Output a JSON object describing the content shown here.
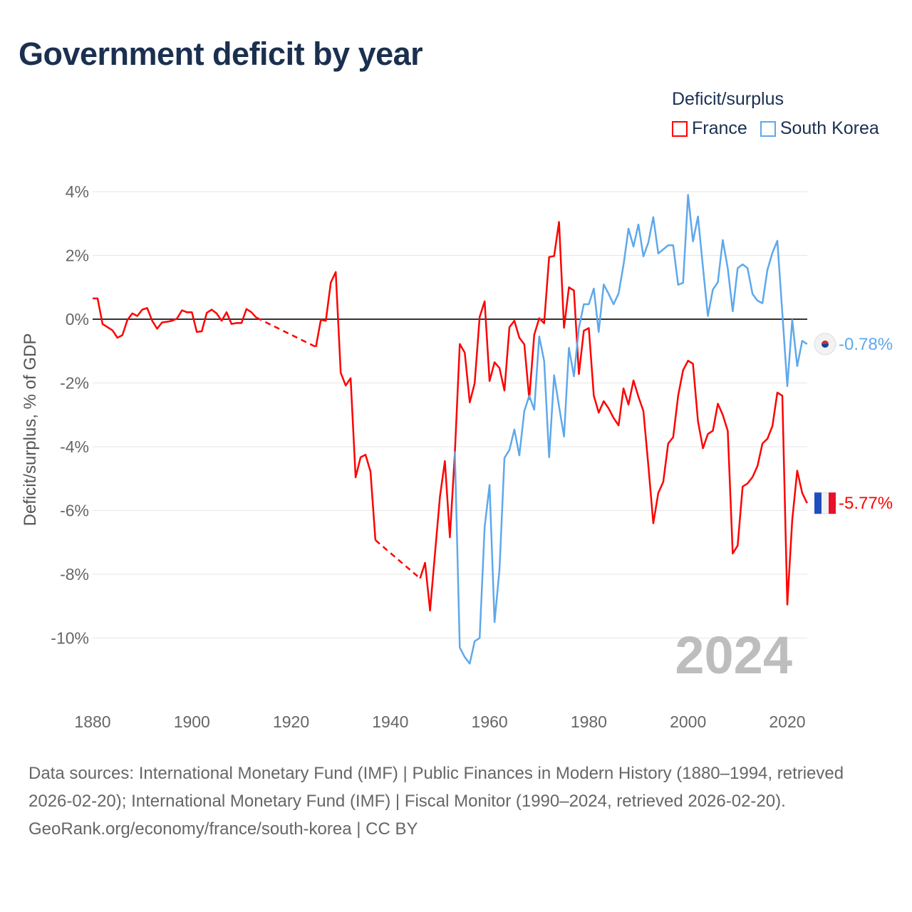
{
  "title": "Government deficit by year",
  "legend": {
    "title": "Deficit/surplus",
    "items": [
      {
        "label": "France",
        "color": "#ff0000"
      },
      {
        "label": "South Korea",
        "color": "#5ea8ec"
      }
    ]
  },
  "chart_data": {
    "type": "line",
    "title": "Government deficit by year",
    "ylabel": "Deficit/surplus, % of GDP",
    "xlabel": "",
    "xlim": [
      1880,
      2024
    ],
    "ylim": [
      -11,
      4
    ],
    "x_ticks": [
      "1880",
      "1900",
      "1920",
      "1940",
      "1960",
      "1980",
      "2000",
      "2020"
    ],
    "y_ticks": [
      {
        "value": 4,
        "label": "4%"
      },
      {
        "value": 2,
        "label": "2%"
      },
      {
        "value": 0,
        "label": "0%"
      },
      {
        "value": -2,
        "label": "-2%"
      },
      {
        "value": -4,
        "label": "-4%"
      },
      {
        "value": -6,
        "label": "-6%"
      },
      {
        "value": -8,
        "label": "-8%"
      },
      {
        "value": -10,
        "label": "-10%"
      }
    ],
    "grid": true,
    "legend_placement": "top-right",
    "year_label": "2024",
    "series": [
      {
        "name": "France",
        "color": "#ff0000",
        "start_year": 1880,
        "end_label": "-5.77%",
        "values": [
          0.65,
          0.65,
          -0.15,
          -0.25,
          -0.35,
          -0.58,
          -0.5,
          -0.03,
          0.18,
          0.1,
          0.3,
          0.35,
          -0.05,
          -0.3,
          -0.1,
          -0.08,
          -0.05,
          0.02,
          0.28,
          0.22,
          0.22,
          -0.4,
          -0.38,
          0.2,
          0.3,
          0.18,
          -0.05,
          0.22,
          -0.15,
          -0.12,
          -0.12,
          0.32,
          0.22,
          0.05,
          null,
          null,
          null,
          null,
          null,
          null,
          null,
          null,
          null,
          null,
          null,
          -0.87,
          -0.02,
          -0.05,
          1.15,
          1.48,
          -1.68,
          -2.08,
          -1.85,
          -4.96,
          -4.33,
          -4.25,
          -4.78,
          -6.93,
          null,
          null,
          null,
          null,
          null,
          null,
          null,
          null,
          -8.13,
          -7.64,
          -9.14,
          -7.35,
          -5.56,
          -4.45,
          -6.84,
          -4.2,
          -0.78,
          -1.05,
          -2.61,
          -2.01,
          0.07,
          0.56,
          -1.94,
          -1.35,
          -1.53,
          -2.24,
          -0.25,
          -0.05,
          -0.58,
          -0.79,
          -2.5,
          -0.49,
          0.03,
          -0.13,
          1.95,
          1.98,
          3.05,
          -0.27,
          1.0,
          0.9,
          -1.72,
          -0.36,
          -0.28,
          -2.4,
          -2.93,
          -2.57,
          -2.8,
          -3.1,
          -3.33,
          -2.17,
          -2.68,
          -1.92,
          -2.43,
          -2.88,
          -4.6,
          -6.4,
          -5.45,
          -5.1,
          -3.9,
          -3.7,
          -2.4,
          -1.6,
          -1.3,
          -1.4,
          -3.2,
          -4.05,
          -3.6,
          -3.5,
          -2.65,
          -3.0,
          -3.5,
          -7.35,
          -7.1,
          -5.25,
          -5.15,
          -4.95,
          -4.6,
          -3.9,
          -3.75,
          -3.35,
          -2.3,
          -2.4,
          -8.95,
          -6.3,
          -4.75,
          -5.45,
          -5.77
        ]
      },
      {
        "name": "South Korea",
        "color": "#5ea8ec",
        "start_year": 1953,
        "end_label": "-0.78%",
        "values": [
          -4.15,
          -10.3,
          -10.6,
          -10.8,
          -10.1,
          -10.0,
          -6.52,
          -5.2,
          -9.5,
          -7.87,
          -4.35,
          -4.1,
          -3.46,
          -4.27,
          -2.88,
          -2.4,
          -2.84,
          -0.54,
          -1.31,
          -4.33,
          -1.76,
          -2.73,
          -3.68,
          -0.9,
          -1.79,
          -0.27,
          0.47,
          0.47,
          0.96,
          -0.4,
          1.09,
          0.79,
          0.47,
          0.81,
          1.7,
          2.84,
          2.28,
          2.97,
          1.97,
          2.41,
          3.2,
          2.06,
          2.19,
          2.32,
          2.32,
          1.08,
          1.14,
          3.9,
          2.44,
          3.22,
          1.63,
          0.1,
          0.93,
          1.16,
          2.48,
          1.6,
          0.25,
          1.6,
          1.72,
          1.6,
          0.79,
          0.58,
          0.5,
          1.55,
          2.08,
          2.46,
          0.2,
          -2.1,
          -0.02,
          -1.47,
          -0.68,
          -0.78
        ]
      }
    ]
  },
  "footer": {
    "sources": "Data sources: International Monetary Fund (IMF) | Public Finances in Modern History (1880–1994, retrieved 2026-02-20); International Monetary Fund (IMF) | Fiscal Monitor (1990–2024, retrieved 2026-02-20).",
    "credit": "GeoRank.org/economy/france/south-korea | CC BY"
  }
}
